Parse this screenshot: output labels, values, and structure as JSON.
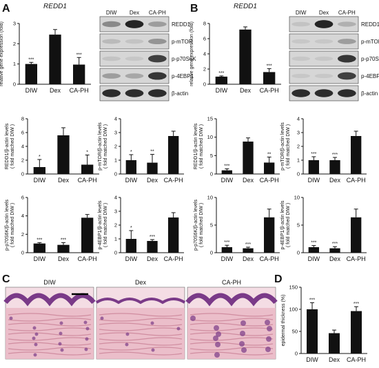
{
  "panels": {
    "A": "A",
    "B": "B",
    "C": "C",
    "D": "D"
  },
  "colors": {
    "bar": "#111111",
    "blot_bg": "#d6d6d6",
    "band": "#1a1a1a",
    "tissue_pink": "#e9b8c6",
    "tissue_purple": "#7a3a88"
  },
  "blot_lanes": [
    "DIW",
    "Dex",
    "CA-PH"
  ],
  "blot_proteins": [
    "REDD1",
    "p-mTOR",
    "p-p70S6K",
    "p-4EBP1",
    "β-actin"
  ],
  "blot_intensity": {
    "A": [
      [
        0.4,
        0.95,
        0.3
      ],
      [
        0.15,
        0.1,
        0.35
      ],
      [
        0.1,
        0.05,
        0.8
      ],
      [
        0.3,
        0.25,
        0.85
      ],
      [
        0.9,
        0.9,
        0.9
      ]
    ],
    "B": [
      [
        0.1,
        0.95,
        0.2
      ],
      [
        0.05,
        0.05,
        0.3
      ],
      [
        0.05,
        0.05,
        0.85
      ],
      [
        0.05,
        0.05,
        0.8
      ],
      [
        0.9,
        0.9,
        0.9
      ]
    ]
  },
  "microscopy": {
    "labels": [
      "DIW",
      "Dex",
      "CA-PH"
    ]
  },
  "chart_data": [
    {
      "id": "A-gene",
      "type": "bar",
      "title": "REDD1",
      "ylabel": "relative gene expression (fold)",
      "categories": [
        "DIW",
        "Dex",
        "CA-PH"
      ],
      "values": [
        1.0,
        2.45,
        0.97
      ],
      "errors": [
        0.08,
        0.25,
        0.35
      ],
      "ylim": [
        0,
        3
      ],
      "yticks": [
        0,
        1,
        2,
        3
      ],
      "sig": [
        "***",
        "",
        "***"
      ]
    },
    {
      "id": "B-gene",
      "type": "bar",
      "title": "REDD1",
      "ylabel": "relative gene expression (fold)",
      "categories": [
        "DIW",
        "Dex",
        "CA-PH"
      ],
      "values": [
        1.0,
        7.2,
        1.6
      ],
      "errors": [
        0.1,
        0.35,
        0.45
      ],
      "ylim": [
        0,
        8
      ],
      "yticks": [
        0,
        2,
        4,
        6,
        8
      ],
      "sig": [
        "***",
        "",
        "***"
      ]
    },
    {
      "id": "A-redd1",
      "type": "bar",
      "ylabel": "REDD1/β-actin levels\n( fold matched DIW )",
      "categories": [
        "DIW",
        "Dex",
        "CA-PH"
      ],
      "values": [
        1.0,
        5.6,
        1.35
      ],
      "errors": [
        1.1,
        1.1,
        1.4
      ],
      "ylim": [
        0,
        8
      ],
      "yticks": [
        0,
        2,
        4,
        6,
        8
      ],
      "sig": [
        "*",
        "",
        "*"
      ]
    },
    {
      "id": "A-mtor",
      "type": "bar",
      "ylabel": "p-mTOR/β-actin levels\n( fold matched DIW )",
      "categories": [
        "DIW",
        "Dex",
        "CA-PH"
      ],
      "values": [
        1.0,
        0.82,
        2.75
      ],
      "errors": [
        0.4,
        0.6,
        0.35
      ],
      "ylim": [
        0,
        4
      ],
      "yticks": [
        0,
        1,
        2,
        3,
        4
      ],
      "sig": [
        "*",
        "**",
        ""
      ]
    },
    {
      "id": "A-p70",
      "type": "bar",
      "ylabel": "p-p70S6K/β-actin levels\n( fold matched DIW )",
      "categories": [
        "DIW",
        "Dex",
        "CA-PH"
      ],
      "values": [
        1.0,
        0.85,
        3.8
      ],
      "errors": [
        0.1,
        0.25,
        0.35
      ],
      "ylim": [
        0,
        6
      ],
      "yticks": [
        0,
        2,
        4,
        6
      ],
      "sig": [
        "***",
        "***",
        ""
      ]
    },
    {
      "id": "A-4ebp1",
      "type": "bar",
      "ylabel": "p-4EBP1/β-actin levels\n( fold matched DIW )",
      "categories": [
        "DIW",
        "Dex",
        "CA-PH"
      ],
      "values": [
        1.0,
        0.85,
        2.55
      ],
      "errors": [
        0.6,
        0.1,
        0.35
      ],
      "ylim": [
        0,
        4
      ],
      "yticks": [
        0,
        1,
        2,
        3,
        4
      ],
      "sig": [
        "*",
        "***",
        ""
      ]
    },
    {
      "id": "B-redd1",
      "type": "bar",
      "ylabel": "REDD1/β-actin levels\n( fold matched DIW )",
      "categories": [
        "DIW",
        "Dex",
        "CA-PH"
      ],
      "values": [
        1.0,
        8.8,
        3.1
      ],
      "errors": [
        0.4,
        1.0,
        1.5
      ],
      "ylim": [
        0,
        15
      ],
      "yticks": [
        0,
        5,
        10,
        15
      ],
      "sig": [
        "***",
        "",
        "**"
      ]
    },
    {
      "id": "B-mtor",
      "type": "bar",
      "ylabel": "p-mTOR/β-actin levels\n( fold matched DIW )",
      "categories": [
        "DIW",
        "Dex",
        "CA-PH"
      ],
      "values": [
        1.0,
        1.0,
        2.75
      ],
      "errors": [
        0.25,
        0.2,
        0.35
      ],
      "ylim": [
        0,
        4
      ],
      "yticks": [
        0,
        1,
        2,
        3,
        4
      ],
      "sig": [
        "***",
        "***",
        ""
      ]
    },
    {
      "id": "B-p70",
      "type": "bar",
      "ylabel": "p-p70S6K/β-actin levels\n( fold matched DIW )",
      "categories": [
        "DIW",
        "Dex",
        "CA-PH"
      ],
      "values": [
        1.0,
        0.8,
        6.4
      ],
      "errors": [
        0.35,
        0.2,
        1.5
      ],
      "ylim": [
        0,
        10
      ],
      "yticks": [
        0,
        5,
        10
      ],
      "sig": [
        "***",
        "***",
        ""
      ]
    },
    {
      "id": "B-4ebp1",
      "type": "bar",
      "ylabel": "p-4EBP1/β-actin levels\n( fold matched DIW )",
      "categories": [
        "DIW",
        "Dex",
        "CA-PH"
      ],
      "values": [
        1.0,
        0.8,
        6.4
      ],
      "errors": [
        0.3,
        0.3,
        1.5
      ],
      "ylim": [
        0,
        10
      ],
      "yticks": [
        0,
        5,
        10
      ],
      "sig": [
        "***",
        "***",
        ""
      ]
    },
    {
      "id": "D-thick",
      "type": "bar",
      "ylabel": "epidermal thickness (%)",
      "categories": [
        "DIW",
        "Dex",
        "CA-PH"
      ],
      "values": [
        100,
        46,
        96
      ],
      "errors": [
        15,
        7,
        10
      ],
      "ylim": [
        0,
        150
      ],
      "yticks": [
        0,
        50,
        100,
        150
      ],
      "sig": [
        "***",
        "",
        "***"
      ]
    }
  ]
}
